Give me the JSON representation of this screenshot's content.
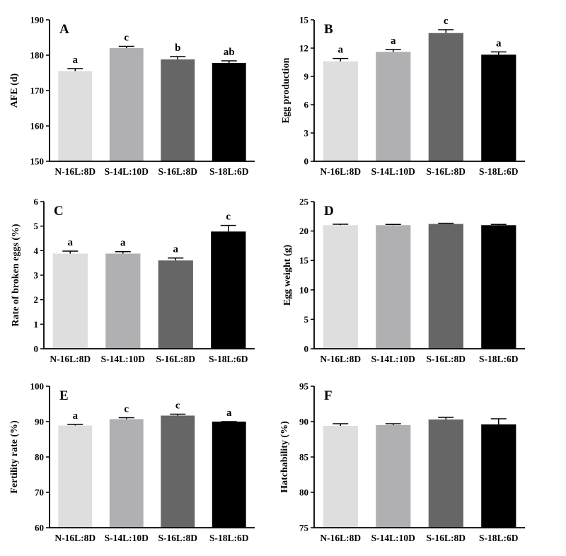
{
  "colors": [
    "#dedede",
    "#b0b0b3",
    "#666666",
    "#000000"
  ],
  "chart_data": [
    {
      "panel": "A",
      "type": "bar",
      "ylabel": "AFE (d)",
      "ylim": [
        150,
        190
      ],
      "yticks": [
        150,
        160,
        170,
        180,
        190
      ],
      "categories": [
        "N-16L:8D",
        "S-14L:10D",
        "S-16L:8D",
        "S-18L:6D"
      ],
      "values": [
        175.5,
        182.0,
        178.8,
        177.8
      ],
      "errors": [
        0.7,
        0.5,
        0.8,
        0.6
      ],
      "letters": [
        "a",
        "c",
        "b",
        "ab"
      ]
    },
    {
      "panel": "B",
      "type": "bar",
      "ylabel": "Egg production",
      "ylim": [
        0,
        15
      ],
      "yticks": [
        0,
        3,
        6,
        9,
        12,
        15
      ],
      "categories": [
        "N-16L:8D",
        "S-14L:10D",
        "S-16L:8D",
        "S-18L:6D"
      ],
      "values": [
        10.6,
        11.6,
        13.6,
        11.3
      ],
      "errors": [
        0.3,
        0.25,
        0.35,
        0.3
      ],
      "letters": [
        "a",
        "a",
        "c",
        "a"
      ]
    },
    {
      "panel": "C",
      "type": "bar",
      "ylabel": "Rate of broken eggs (%)",
      "ylim": [
        0,
        6
      ],
      "yticks": [
        0,
        1,
        2,
        3,
        4,
        5,
        6
      ],
      "categories": [
        "N-16L:8D",
        "S-14L:10D",
        "S-16L:8D",
        "S-18L:6D"
      ],
      "values": [
        3.88,
        3.88,
        3.6,
        4.78
      ],
      "errors": [
        0.1,
        0.08,
        0.1,
        0.25
      ],
      "letters": [
        "a",
        "a",
        "a",
        "c"
      ]
    },
    {
      "panel": "D",
      "type": "bar",
      "ylabel": "Egg weight (g)",
      "ylim": [
        0,
        25
      ],
      "yticks": [
        0,
        5,
        10,
        15,
        20,
        25
      ],
      "categories": [
        "N-16L:8D",
        "S-14L:10D",
        "S-16L:8D",
        "S-18L:6D"
      ],
      "values": [
        21.0,
        21.0,
        21.2,
        21.0
      ],
      "errors": [
        0.15,
        0.12,
        0.12,
        0.12
      ],
      "letters": [
        "",
        "",
        "",
        ""
      ]
    },
    {
      "panel": "E",
      "type": "bar",
      "ylabel": "Fertility rate (%)",
      "ylim": [
        60,
        100
      ],
      "yticks": [
        60,
        70,
        80,
        90,
        100
      ],
      "categories": [
        "N-16L:8D",
        "S-14L:10D",
        "S-16L:8D",
        "S-18L:6D"
      ],
      "values": [
        88.9,
        90.7,
        91.7,
        90.0
      ],
      "errors": [
        0.3,
        0.4,
        0.4,
        0.0
      ],
      "letters": [
        "a",
        "c",
        "c",
        "a"
      ]
    },
    {
      "panel": "F",
      "type": "bar",
      "ylabel": "Hatchability (%)",
      "ylim": [
        75,
        95
      ],
      "yticks": [
        75,
        80,
        85,
        90,
        95
      ],
      "categories": [
        "N-16L:8D",
        "S-14L:10D",
        "S-16L:8D",
        "S-18L:6D"
      ],
      "values": [
        89.4,
        89.5,
        90.3,
        89.6
      ],
      "errors": [
        0.3,
        0.2,
        0.3,
        0.8
      ],
      "letters": [
        "",
        "",
        "",
        ""
      ]
    }
  ]
}
